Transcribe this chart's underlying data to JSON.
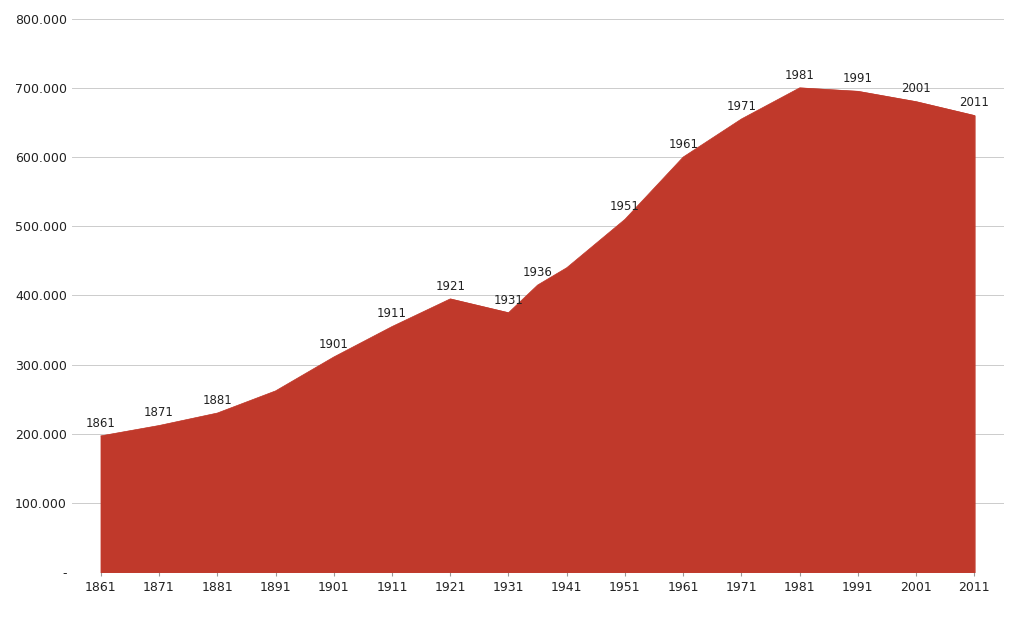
{
  "years": [
    1861,
    1871,
    1881,
    1891,
    1901,
    1911,
    1921,
    1931,
    1936,
    1941,
    1951,
    1961,
    1971,
    1981,
    1991,
    2001,
    2011
  ],
  "values": [
    197000,
    212000,
    230000,
    262000,
    311000,
    355000,
    395000,
    375000,
    415000,
    440000,
    510000,
    600000,
    655000,
    700000,
    695000,
    680000,
    660000
  ],
  "fill_color": "#c0392b",
  "fill_alpha": 1.0,
  "line_color": "#c0392b",
  "background_color": "#ffffff",
  "grid_color": "#cccccc",
  "label_color": "#222222",
  "ylim": [
    0,
    800000
  ],
  "yticks": [
    0,
    100000,
    200000,
    300000,
    400000,
    500000,
    600000,
    700000,
    800000
  ],
  "ytick_labels": [
    "-",
    "100.000",
    "200.000",
    "300.000",
    "400.000",
    "500.000",
    "600.000",
    "700.000",
    "800.000"
  ],
  "xtick_labels": [
    "1861",
    "1871",
    "1881",
    "1891",
    "1901",
    "1911",
    "1921",
    "1931",
    "1941",
    "1951",
    "1961",
    "1971",
    "1981",
    "1991",
    "2001",
    "2011"
  ],
  "point_labels": [
    "1861",
    "1871",
    "1881",
    "1901",
    "1911",
    "1921",
    "1931",
    "1936",
    "1951",
    "1961",
    "1971",
    "1981",
    "1991",
    "2001",
    "2011"
  ],
  "point_label_years": [
    1861,
    1871,
    1881,
    1901,
    1911,
    1921,
    1931,
    1936,
    1951,
    1961,
    1971,
    1981,
    1991,
    2001,
    2011
  ],
  "point_label_values": [
    197000,
    212000,
    230000,
    311000,
    355000,
    395000,
    375000,
    415000,
    510000,
    600000,
    655000,
    700000,
    695000,
    680000,
    660000
  ],
  "xlim": [
    1856,
    2016
  ],
  "figsize": [
    10.24,
    6.22
  ],
  "dpi": 100
}
